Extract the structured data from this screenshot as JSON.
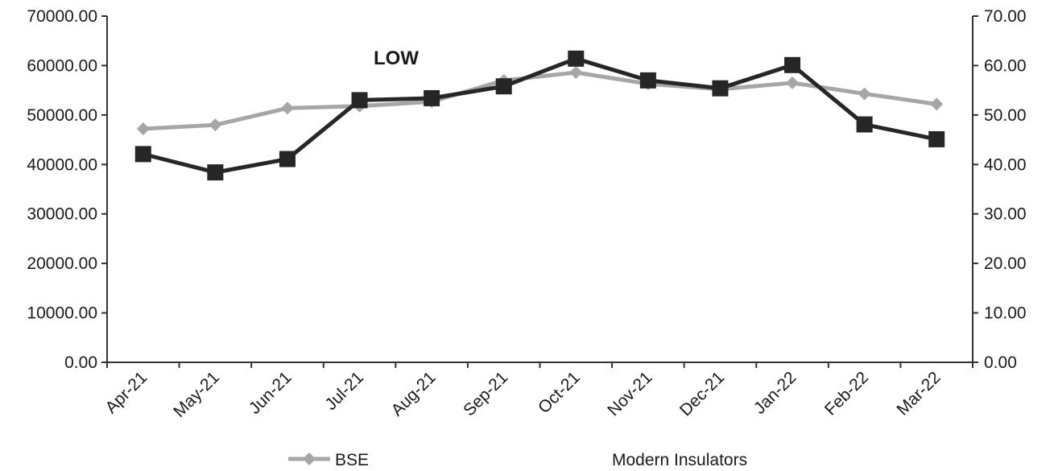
{
  "chart_data": {
    "type": "line",
    "title": "LOW",
    "categories": [
      "Apr-21",
      "May-21",
      "Jun-21",
      "Jul-21",
      "Aug-21",
      "Sep-21",
      "Oct-21",
      "Nov-21",
      "Dec-21",
      "Jan-22",
      "Feb-22",
      "Mar-22"
    ],
    "series": [
      {
        "name": "BSE",
        "axis": "left",
        "color": "#a6a6a6",
        "marker": "diamond",
        "values": [
          47200,
          48000,
          51400,
          51800,
          52700,
          57000,
          58600,
          56300,
          55200,
          56500,
          54300,
          52200
        ]
      },
      {
        "name": "Modern Insulators",
        "axis": "right",
        "color": "#262626",
        "marker": "square",
        "values": [
          42.1,
          38.4,
          41.1,
          53.0,
          53.4,
          55.8,
          61.4,
          57.0,
          55.4,
          60.1,
          48.1,
          45.1
        ]
      }
    ],
    "y_left": {
      "lim": [
        0,
        70000
      ],
      "ticks": [
        "0.00",
        "10000.00",
        "20000.00",
        "30000.00",
        "40000.00",
        "50000.00",
        "60000.00",
        "70000.00"
      ]
    },
    "y_right": {
      "lim": [
        0,
        70
      ],
      "ticks": [
        "0.00",
        "10.00",
        "20.00",
        "30.00",
        "40.00",
        "50.00",
        "60.00",
        "70.00"
      ]
    },
    "grid": false,
    "legend": "bottom"
  }
}
